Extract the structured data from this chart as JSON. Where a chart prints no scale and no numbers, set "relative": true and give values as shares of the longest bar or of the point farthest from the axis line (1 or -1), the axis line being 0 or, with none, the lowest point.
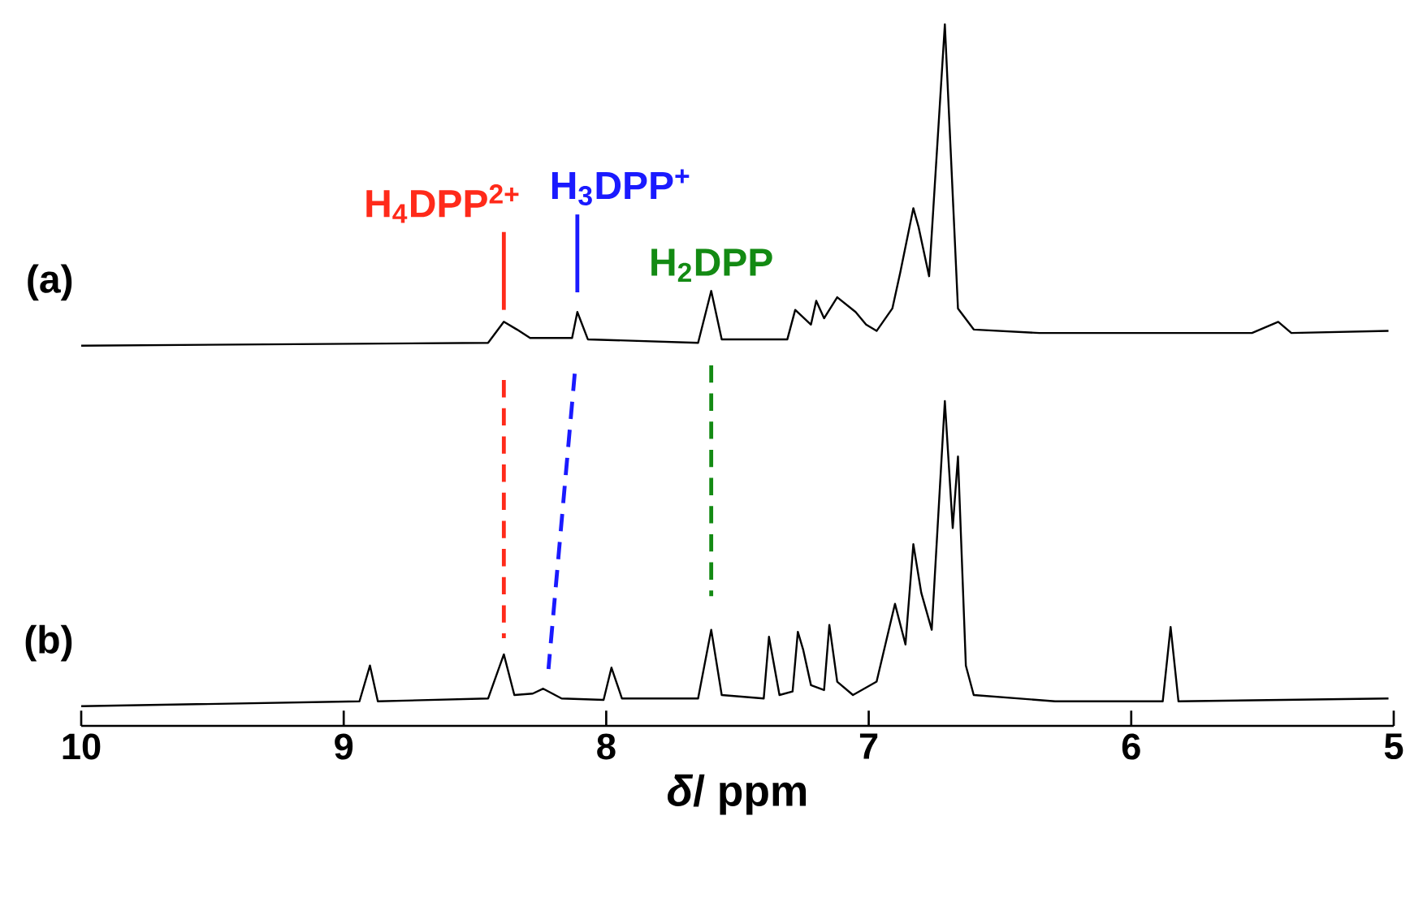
{
  "chart_data": {
    "type": "line",
    "relative": true,
    "xlabel": "*δ*/ ppm",
    "xlim": [
      10,
      5
    ],
    "xticks": [
      10,
      9,
      8,
      7,
      6,
      5
    ],
    "grid": false,
    "series": [
      {
        "name": "(a)",
        "color": "#000000",
        "x": [
          10.0,
          8.45,
          8.39,
          8.34,
          8.29,
          8.13,
          8.11,
          8.07,
          7.65,
          7.6,
          7.56,
          7.31,
          7.28,
          7.22,
          7.2,
          7.17,
          7.12,
          7.05,
          7.01,
          6.97,
          6.91,
          6.88,
          6.83,
          6.81,
          6.77,
          6.71,
          6.66,
          6.6,
          6.35,
          5.54,
          5.44,
          5.39,
          5.02
        ],
        "values": [
          0.542,
          0.546,
          0.576,
          0.565,
          0.553,
          0.553,
          0.59,
          0.551,
          0.546,
          0.62,
          0.551,
          0.551,
          0.593,
          0.572,
          0.606,
          0.581,
          0.611,
          0.59,
          0.572,
          0.563,
          0.595,
          0.646,
          0.738,
          0.711,
          0.641,
          1.0,
          0.595,
          0.565,
          0.56,
          0.56,
          0.576,
          0.56,
          0.563
        ]
      },
      {
        "name": "(b)",
        "color": "#000000",
        "x": [
          10.0,
          8.94,
          8.9,
          8.87,
          8.45,
          8.39,
          8.35,
          8.28,
          8.24,
          8.17,
          8.01,
          7.98,
          7.94,
          7.65,
          7.6,
          7.56,
          7.4,
          7.38,
          7.34,
          7.29,
          7.27,
          7.25,
          7.22,
          7.17,
          7.15,
          7.12,
          7.06,
          6.97,
          6.9,
          6.86,
          6.83,
          6.8,
          6.76,
          6.71,
          6.68,
          6.66,
          6.63,
          6.6,
          6.29,
          5.88,
          5.85,
          5.82,
          5.02
        ],
        "values": [
          0.028,
          0.035,
          0.086,
          0.035,
          0.039,
          0.102,
          0.044,
          0.046,
          0.053,
          0.039,
          0.037,
          0.083,
          0.039,
          0.039,
          0.137,
          0.044,
          0.039,
          0.127,
          0.044,
          0.049,
          0.134,
          0.109,
          0.058,
          0.051,
          0.144,
          0.063,
          0.044,
          0.063,
          0.174,
          0.116,
          0.259,
          0.19,
          0.137,
          0.463,
          0.282,
          0.384,
          0.086,
          0.044,
          0.035,
          0.035,
          0.141,
          0.035,
          0.039
        ]
      },
      {
        "name": "H$_{4}$DPP$^{2+}$",
        "color": "#ff2a1a",
        "line_style": "solid",
        "x": [
          8.39,
          8.39
        ],
        "values": [
          0.704,
          0.593
        ]
      },
      {
        "color": "#ff2a1a",
        "line_style": "dashed",
        "x": [
          8.39,
          8.39
        ],
        "values": [
          0.493,
          0.125
        ]
      },
      {
        "name": "H$_{3}$DPP$^{+}$",
        "color": "#1a1aff",
        "line_style": "solid",
        "x": [
          8.11,
          8.11
        ],
        "values": [
          0.729,
          0.618
        ]
      },
      {
        "color": "#1a1aff",
        "line_style": "dashed",
        "x": [
          8.12,
          8.22
        ],
        "values": [
          0.502,
          0.081
        ]
      },
      {
        "name": "H$_{2}$DPP",
        "color": "#138a13",
        "line_style": "dashed",
        "x": [
          7.6,
          7.6
        ],
        "values": [
          0.514,
          0.185
        ]
      }
    ]
  }
}
